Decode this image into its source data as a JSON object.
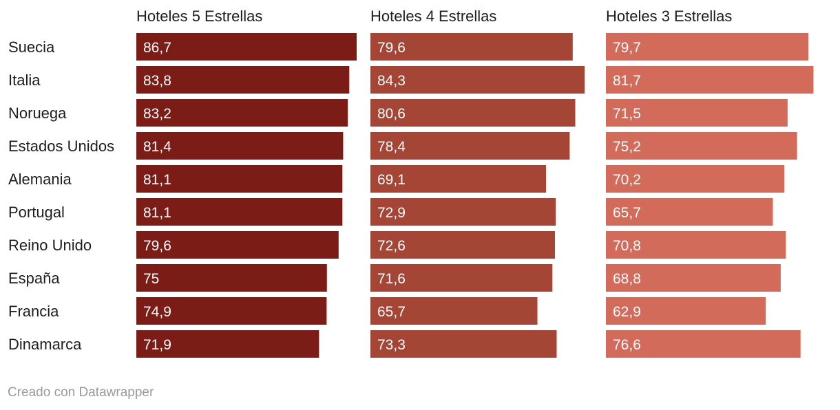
{
  "chart_data": {
    "type": "bar",
    "orientation": "horizontal",
    "layout": "small-multiples",
    "categories": [
      "Suecia",
      "Italia",
      "Noruega",
      "Estados Unidos",
      "Alemania",
      "Portugal",
      "Reino Unido",
      "España",
      "Francia",
      "Dinamarca"
    ],
    "series": [
      {
        "name": "Hoteles 5 Estrellas",
        "color": "#7b1c16",
        "values": [
          86.7,
          83.8,
          83.2,
          81.4,
          81.1,
          81.1,
          79.6,
          75,
          74.9,
          71.9
        ],
        "labels": [
          "86,7",
          "83,8",
          "83,2",
          "81,4",
          "81,1",
          "81,1",
          "79,6",
          "75",
          "74,9",
          "71,9"
        ]
      },
      {
        "name": "Hoteles 4 Estrellas",
        "color": "#a44535",
        "values": [
          79.6,
          84.3,
          80.6,
          78.4,
          69.1,
          72.9,
          72.6,
          71.6,
          65.7,
          73.3
        ],
        "labels": [
          "79,6",
          "84,3",
          "80,6",
          "78,4",
          "69,1",
          "72,9",
          "72,6",
          "71,6",
          "65,7",
          "73,3"
        ]
      },
      {
        "name": "Hoteles 3 Estrellas",
        "color": "#d36b5a",
        "values": [
          79.7,
          81.7,
          71.5,
          75.2,
          70.2,
          65.7,
          70.8,
          68.8,
          62.9,
          76.6
        ],
        "labels": [
          "79,7",
          "81,7",
          "71,5",
          "75,2",
          "70,2",
          "65,7",
          "70,8",
          "68,8",
          "62,9",
          "76,6"
        ]
      }
    ],
    "xlim": [
      0,
      86.7
    ],
    "grid": false,
    "legend": "none"
  },
  "footer": {
    "credit": "Creado con Datawrapper"
  }
}
